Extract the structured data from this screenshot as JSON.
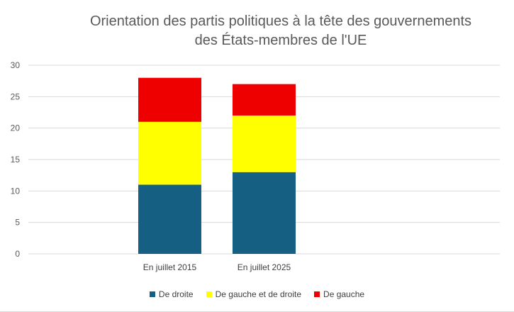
{
  "chart_data": {
    "type": "bar",
    "stacked": true,
    "title_lines": [
      "Orientation des partis politiques à la tête des gouvernements",
      "des États-membres de l'UE"
    ],
    "categories": [
      "En juillet 2015",
      "En juillet 2025"
    ],
    "series": [
      {
        "name": "De droite",
        "values": [
          11,
          13
        ],
        "color": "#156082"
      },
      {
        "name": "De gauche et de droite",
        "values": [
          10,
          9
        ],
        "color": "#FFFF00"
      },
      {
        "name": "De gauche",
        "values": [
          7,
          5
        ],
        "color": "#EE0000"
      }
    ],
    "ylim": [
      0,
      30
    ],
    "yticks": [
      0,
      5,
      10,
      15,
      20,
      25,
      30
    ],
    "grid": true,
    "legend_position": "bottom"
  }
}
